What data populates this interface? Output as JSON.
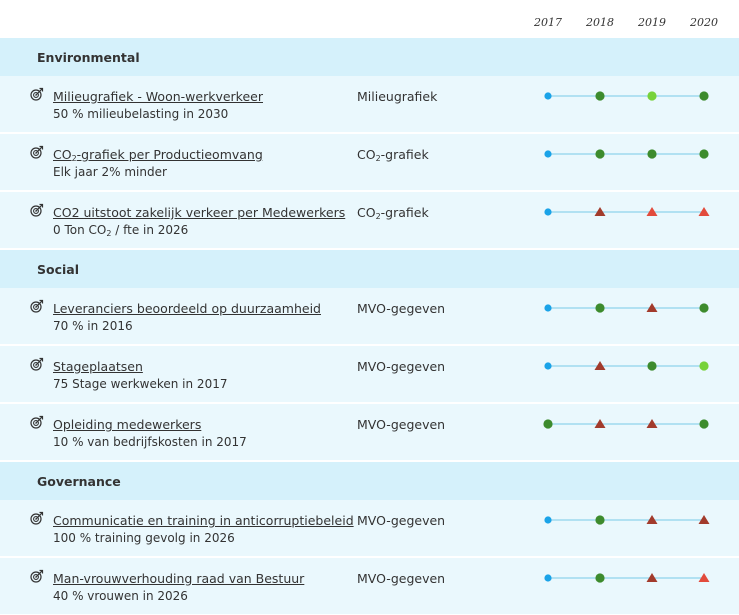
{
  "years": [
    "2017",
    "2018",
    "2019",
    "2020"
  ],
  "colors": {
    "line": "#8fd3ec",
    "blue": "#1aa3e8",
    "darkgreen": "#3d8b2d",
    "lightgreen": "#77d23a",
    "darkred": "#a23b2c",
    "red": "#e24b3c"
  },
  "icon_name": "target-arrow-icon",
  "sections": [
    {
      "title": "Environmental",
      "rows": [
        {
          "title": "Milieugrafiek - Woon-werkverkeer",
          "sub": "50 % milieubelasting in 2030",
          "source": "Milieugrafiek",
          "markers": [
            "dot-blue",
            "dot-darkgreen",
            "dot-lightgreen",
            "dot-darkgreen"
          ]
        },
        {
          "title_pre": "CO",
          "title_sub": "2",
          "title_post": "-grafiek per Productieomvang",
          "sub": "Elk jaar 2% minder",
          "source_pre": "CO",
          "source_sub": "2",
          "source_post": "-grafiek",
          "markers": [
            "dot-blue",
            "dot-darkgreen",
            "dot-darkgreen",
            "dot-darkgreen"
          ]
        },
        {
          "title": "CO2 uitstoot zakelijk verkeer per Medewerkers",
          "sub_pre": "0 Ton CO",
          "sub_sub": "2",
          "sub_post": " / fte in 2026",
          "source_pre": "CO",
          "source_sub": "2",
          "source_post": "-grafiek",
          "markers": [
            "dot-blue",
            "tri-darkred",
            "tri-red",
            "tri-red"
          ]
        }
      ]
    },
    {
      "title": "Social",
      "rows": [
        {
          "title": "Leveranciers beoordeeld op duurzaamheid",
          "sub": "70 % in 2016",
          "source": "MVO-gegeven",
          "markers": [
            "dot-blue",
            "dot-darkgreen",
            "tri-darkred",
            "dot-darkgreen"
          ]
        },
        {
          "title": "Stageplaatsen",
          "sub": "75 Stage werkweken in 2017",
          "source": "MVO-gegeven",
          "markers": [
            "dot-blue",
            "tri-darkred",
            "dot-darkgreen",
            "dot-lightgreen"
          ]
        },
        {
          "title": "Opleiding medewerkers",
          "sub": "10 % van bedrijfskosten in 2017",
          "source": "MVO-gegeven",
          "markers": [
            "dot-darkgreen",
            "tri-darkred",
            "tri-darkred",
            "dot-darkgreen"
          ]
        }
      ]
    },
    {
      "title": "Governance",
      "rows": [
        {
          "title": "Communicatie en training in anticorruptiebeleid",
          "sub": "100 % training gevolg in 2026",
          "source": "MVO-gegeven",
          "markers": [
            "dot-blue",
            "dot-darkgreen",
            "tri-darkred",
            "tri-darkred"
          ]
        },
        {
          "title": "Man-vrouwverhouding raad van Bestuur",
          "sub": "40 % vrouwen in 2026",
          "source": "MVO-gegeven",
          "markers": [
            "dot-blue",
            "dot-darkgreen",
            "tri-darkred",
            "tri-red"
          ]
        }
      ]
    }
  ]
}
